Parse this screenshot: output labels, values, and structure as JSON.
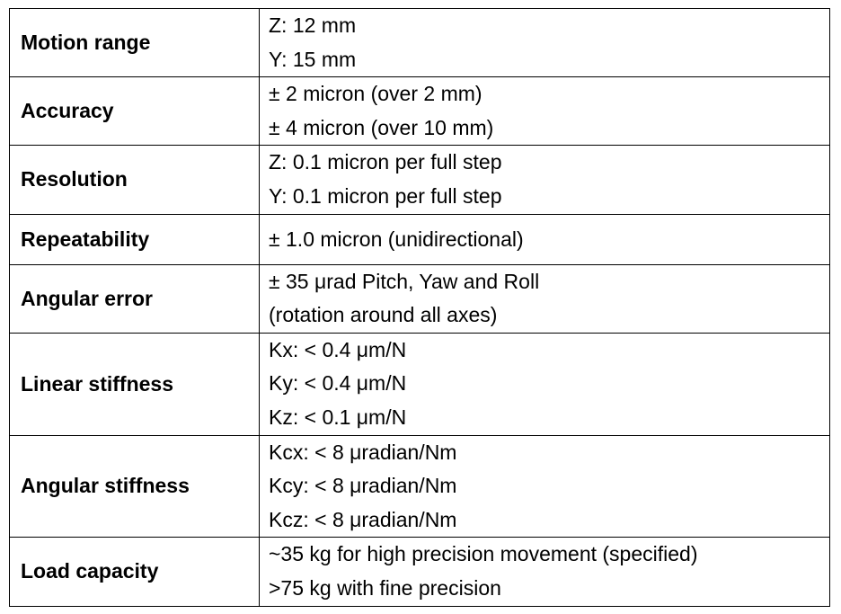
{
  "spec_rows": [
    {
      "label": "Motion range",
      "values": [
        "Z: 12 mm",
        "Y: 15 mm"
      ]
    },
    {
      "label": "Accuracy",
      "values": [
        "± 2 micron (over 2 mm)",
        "± 4 micron (over 10 mm)"
      ]
    },
    {
      "label": "Resolution",
      "values": [
        "Z: 0.1 micron per full step",
        "Y: 0.1 micron per full step"
      ]
    },
    {
      "label": "Repeatability",
      "values": [
        "± 1.0 micron (unidirectional)"
      ]
    },
    {
      "label": "Angular error",
      "values": [
        "± 35 μrad Pitch, Yaw and Roll",
        "(rotation around all axes)"
      ]
    },
    {
      "label": "Linear stiffness",
      "values": [
        "Kx: < 0.4 μm/N",
        "Ky: < 0.4 μm/N",
        "Kz: < 0.1 μm/N"
      ]
    },
    {
      "label": "Angular stiffness",
      "values": [
        "Kcx: < 8 μradian/Nm",
        "Kcy: < 8 μradian/Nm",
        "Kcz: < 8 μradian/Nm"
      ]
    },
    {
      "label": "Load capacity",
      "values": [
        "~35 kg for high precision movement (specified)",
        ">75 kg with fine precision"
      ]
    }
  ]
}
